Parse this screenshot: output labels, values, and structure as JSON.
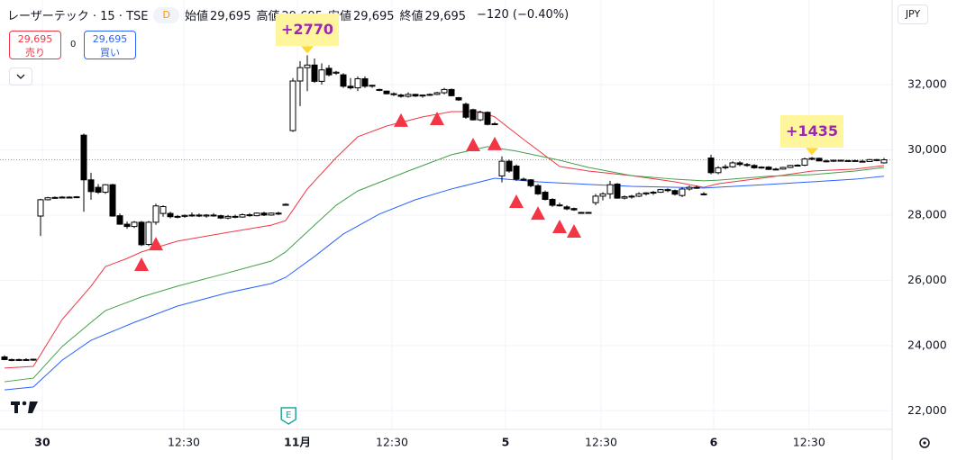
{
  "header": {
    "symbol": "レーザーテック · 15 · TSE",
    "badge": "D",
    "ohlc": [
      {
        "label": "始値",
        "value": "29,695"
      },
      {
        "label": "高値",
        "value": "29,695"
      },
      {
        "label": "安値",
        "value": "29,695"
      },
      {
        "label": "終値",
        "value": "29,695"
      }
    ],
    "change": "−120 (−0.40%)"
  },
  "trade": {
    "sell_price": "29,695",
    "sell": "売り",
    "spread": "0",
    "buy_price": "29,695",
    "buy": "買い"
  },
  "currency": "JPY",
  "chart_data": {
    "type": "candlestick",
    "up_color": "#ffffff",
    "down_color": "#000000",
    "border_color": "#000000",
    "candles": [
      [
        23650,
        23700,
        23550,
        23570
      ],
      [
        23570,
        23600,
        23520,
        23560
      ],
      [
        23560,
        23600,
        23530,
        23570
      ],
      [
        23570,
        23610,
        23540,
        23560
      ],
      [
        23560,
        23600,
        23530,
        23580
      ],
      [
        27970,
        28500,
        27360,
        28470
      ],
      [
        28470,
        28560,
        28450,
        28530
      ],
      [
        28530,
        28570,
        28500,
        28540
      ],
      [
        28540,
        28580,
        28510,
        28550
      ],
      [
        28550,
        28580,
        28520,
        28540
      ],
      [
        28540,
        28580,
        28520,
        28560
      ],
      [
        30450,
        30500,
        28100,
        29080
      ],
      [
        29080,
        29300,
        28470,
        28720
      ],
      [
        28850,
        28950,
        28650,
        28700
      ],
      [
        28700,
        28950,
        28650,
        28930
      ],
      [
        28930,
        28960,
        27950,
        27970
      ],
      [
        27980,
        28050,
        27700,
        27720
      ],
      [
        27720,
        27800,
        27580,
        27650
      ],
      [
        27650,
        27820,
        27600,
        27780
      ],
      [
        27780,
        27820,
        27050,
        27090
      ],
      [
        27100,
        27820,
        27050,
        27780
      ],
      [
        27780,
        28350,
        27700,
        28280
      ],
      [
        28050,
        28300,
        27950,
        28260
      ],
      [
        28050,
        28100,
        27900,
        27950
      ],
      [
        27950,
        28000,
        27900,
        27960
      ],
      [
        27960,
        28020,
        27920,
        27990
      ],
      [
        27990,
        28080,
        27950,
        28000
      ],
      [
        28000,
        28050,
        27940,
        27970
      ],
      [
        27970,
        28030,
        27920,
        28000
      ],
      [
        28000,
        28060,
        27950,
        27980
      ],
      [
        27980,
        28010,
        27880,
        27910
      ],
      [
        27910,
        28000,
        27870,
        27960
      ],
      [
        27960,
        28010,
        27900,
        27940
      ],
      [
        27940,
        28050,
        27920,
        28010
      ],
      [
        28010,
        28060,
        27950,
        27980
      ],
      [
        27980,
        28080,
        27960,
        28060
      ],
      [
        28060,
        28100,
        27970,
        28000
      ],
      [
        28000,
        28080,
        27980,
        28060
      ],
      [
        28060,
        28100,
        28000,
        28040
      ],
      [
        28300,
        28360,
        28300,
        28330
      ],
      [
        30590,
        32200,
        30550,
        32110
      ],
      [
        32110,
        32720,
        31340,
        32520
      ],
      [
        32520,
        32900,
        31800,
        32600
      ],
      [
        32600,
        32800,
        32050,
        32100
      ],
      [
        32100,
        32650,
        32000,
        32450
      ],
      [
        32500,
        32600,
        32250,
        32300
      ],
      [
        32350,
        32420,
        32300,
        32380
      ],
      [
        32300,
        32350,
        31900,
        31950
      ],
      [
        31950,
        32200,
        31850,
        31900
      ],
      [
        31900,
        32250,
        31800,
        32180
      ],
      [
        32180,
        32250,
        31900,
        31950
      ],
      [
        31950,
        32000,
        31900,
        31980
      ],
      [
        31850,
        31880,
        31800,
        31830
      ],
      [
        31800,
        31820,
        31700,
        31720
      ],
      [
        31720,
        31760,
        31650,
        31700
      ],
      [
        31680,
        31720,
        31600,
        31640
      ],
      [
        31640,
        31760,
        31600,
        31700
      ],
      [
        31700,
        31720,
        31620,
        31650
      ],
      [
        31650,
        31700,
        31600,
        31680
      ],
      [
        31680,
        31730,
        31650,
        31700
      ],
      [
        31700,
        31780,
        31680,
        31750
      ],
      [
        31750,
        31900,
        31700,
        31850
      ],
      [
        31850,
        31880,
        31640,
        31660
      ],
      [
        31600,
        31620,
        31500,
        31530
      ],
      [
        31400,
        31450,
        30950,
        31000
      ],
      [
        31230,
        31260,
        30900,
        30920
      ],
      [
        30920,
        31200,
        30880,
        31150
      ],
      [
        31150,
        31180,
        30750,
        30780
      ],
      [
        30800,
        30850,
        30760,
        30790
      ],
      [
        29200,
        29800,
        29000,
        29650
      ],
      [
        29650,
        29700,
        29300,
        29350
      ],
      [
        29500,
        29550,
        29050,
        29100
      ],
      [
        29100,
        29150,
        29050,
        29080
      ],
      [
        29080,
        29100,
        28850,
        28900
      ],
      [
        28900,
        28950,
        28620,
        28650
      ],
      [
        28700,
        28750,
        28450,
        28480
      ],
      [
        28480,
        28520,
        28250,
        28300
      ],
      [
        28300,
        28380,
        28260,
        28310
      ],
      [
        28250,
        28300,
        28150,
        28190
      ],
      [
        28200,
        28230,
        28130,
        28160
      ],
      [
        28080,
        28100,
        28040,
        28060
      ],
      [
        28060,
        28100,
        28050,
        28080
      ],
      [
        28380,
        28650,
        28300,
        28580
      ],
      [
        28580,
        28700,
        28450,
        28650
      ],
      [
        28650,
        29050,
        28500,
        28930
      ],
      [
        28950,
        28980,
        28500,
        28520
      ],
      [
        28520,
        28600,
        28480,
        28560
      ],
      [
        28560,
        28620,
        28500,
        28580
      ],
      [
        28580,
        28700,
        28550,
        28650
      ],
      [
        28650,
        28700,
        28600,
        28680
      ],
      [
        28680,
        28740,
        28620,
        28700
      ],
      [
        28700,
        28800,
        28680,
        28780
      ],
      [
        28780,
        28820,
        28700,
        28750
      ],
      [
        28750,
        28780,
        28600,
        28640
      ],
      [
        28600,
        28850,
        28550,
        28800
      ],
      [
        28800,
        28900,
        28750,
        28850
      ],
      [
        28850,
        28900,
        28800,
        28830
      ],
      [
        28650,
        28700,
        28600,
        28640
      ],
      [
        29750,
        29850,
        29250,
        29300
      ],
      [
        29300,
        29500,
        29250,
        29450
      ],
      [
        29450,
        29550,
        29400,
        29480
      ],
      [
        29480,
        29650,
        29450,
        29600
      ],
      [
        29600,
        29650,
        29500,
        29550
      ],
      [
        29550,
        29600,
        29480,
        29520
      ],
      [
        29520,
        29560,
        29420,
        29450
      ],
      [
        29450,
        29500,
        29420,
        29470
      ],
      [
        29470,
        29500,
        29380,
        29400
      ],
      [
        29400,
        29450,
        29380,
        29410
      ],
      [
        29410,
        29480,
        29400,
        29460
      ],
      [
        29460,
        29540,
        29440,
        29520
      ],
      [
        29520,
        29560,
        29500,
        29530
      ],
      [
        29530,
        29760,
        29500,
        29720
      ],
      [
        29720,
        29780,
        29680,
        29740
      ],
      [
        29740,
        29760,
        29650,
        29660
      ],
      [
        29660,
        29700,
        29620,
        29650
      ],
      [
        29650,
        29700,
        29630,
        29680
      ],
      [
        29680,
        29700,
        29640,
        29660
      ],
      [
        29660,
        29690,
        29630,
        29670
      ],
      [
        29670,
        29700,
        29640,
        29650
      ],
      [
        29650,
        29700,
        29620,
        29640
      ],
      [
        29640,
        29720,
        29630,
        29700
      ],
      [
        29700,
        29720,
        29650,
        29680
      ],
      [
        29600,
        29750,
        29580,
        29695
      ]
    ],
    "lines": [
      {
        "color": "#f23645",
        "x": [
          0,
          4,
          8,
          12,
          14,
          17,
          19,
          24,
          31,
          37,
          39,
          42,
          46,
          49,
          53,
          58,
          62,
          66,
          68,
          72,
          77,
          81,
          87,
          93,
          97,
          99,
          106,
          112,
          118,
          122
        ],
        "values": [
          23310,
          23360,
          24800,
          25820,
          26420,
          26670,
          26870,
          27200,
          27470,
          27690,
          27830,
          28800,
          29760,
          30400,
          30730,
          31010,
          31170,
          31170,
          31010,
          30320,
          29490,
          29350,
          29210,
          29020,
          28850,
          28960,
          29160,
          29350,
          29410,
          29520
        ]
      },
      {
        "color": "#43a047",
        "x": [
          0,
          4,
          8,
          12,
          14,
          19,
          24,
          31,
          37,
          39,
          43,
          46,
          49,
          56,
          62,
          67,
          71,
          77,
          81,
          87,
          93,
          97,
          99,
          106,
          112,
          118,
          122
        ],
        "values": [
          22890,
          23000,
          23970,
          24710,
          25070,
          25490,
          25820,
          26230,
          26590,
          26870,
          27690,
          28300,
          28740,
          29350,
          29850,
          30100,
          29960,
          29680,
          29460,
          29210,
          29100,
          29050,
          29070,
          29190,
          29240,
          29350,
          29460
        ]
      },
      {
        "color": "#2962ff",
        "x": [
          0,
          4,
          8,
          12,
          18,
          24,
          31,
          37,
          39,
          43,
          47,
          52,
          57,
          62,
          68,
          74,
          81,
          87,
          97,
          106,
          112,
          118,
          122
        ],
        "values": [
          22640,
          22730,
          23550,
          24160,
          24710,
          25210,
          25620,
          25900,
          26090,
          26730,
          27420,
          28030,
          28470,
          28800,
          29130,
          29020,
          28940,
          28880,
          28830,
          28940,
          29020,
          29100,
          29190
        ]
      }
    ],
    "markers": {
      "color": "#f23645",
      "x": [
        19,
        21,
        55,
        60,
        65,
        68,
        71,
        74,
        77,
        79
      ],
      "values": [
        26480,
        27110,
        30900,
        30950,
        30150,
        30180,
        28410,
        28050,
        27640,
        27500
      ]
    },
    "annotations": [
      {
        "text": "+2770",
        "x": 42
      },
      {
        "text": "+1435",
        "x": 112
      }
    ],
    "events": [
      {
        "label": "E",
        "x": 39.4
      }
    ],
    "xlim": [
      -0.625,
      123.125
    ],
    "ylim": [
      21429,
      34594
    ],
    "xticks": [
      {
        "value": 5.25,
        "label": "30"
      },
      {
        "value": 24.875,
        "label": "12:30"
      },
      {
        "value": 40.625,
        "label": "11月"
      },
      {
        "value": 53.75,
        "label": "12:30"
      },
      {
        "value": 69.5,
        "label": "5"
      },
      {
        "value": 82.75,
        "label": "12:30"
      },
      {
        "value": 98.375,
        "label": "6"
      },
      {
        "value": 111.6,
        "label": "12:30"
      }
    ],
    "yticks": [
      {
        "value": 22000,
        "label": "22,000"
      },
      {
        "value": 24000,
        "label": "24,000"
      },
      {
        "value": 26000,
        "label": "26,000"
      },
      {
        "value": 28000,
        "label": "28,000"
      },
      {
        "value": 30000,
        "label": "30,000"
      },
      {
        "value": 32000,
        "label": "32,000"
      }
    ],
    "grid": true
  }
}
